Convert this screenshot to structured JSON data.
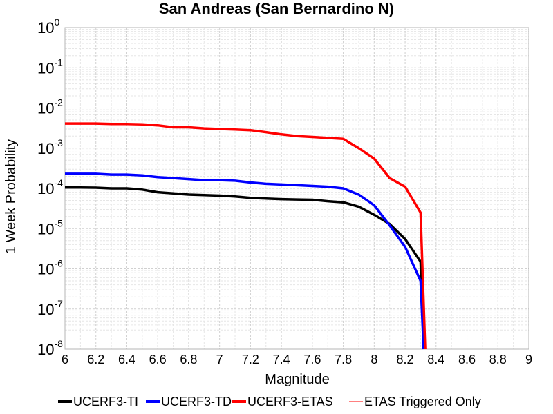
{
  "chart_data": {
    "type": "line",
    "title": "San Andreas (San Bernardino N)",
    "xlabel": "Magnitude",
    "ylabel": "1 Week Probability",
    "xlim": [
      6,
      9
    ],
    "ylim": [
      1e-08,
      1
    ],
    "yscale": "log",
    "grid": true,
    "legend_position": "bottom",
    "x_ticks": [
      "6",
      "6.2",
      "6.4",
      "6.6",
      "6.8",
      "7",
      "7.2",
      "7.4",
      "7.6",
      "7.8",
      "8",
      "8.2",
      "8.4",
      "8.6",
      "8.8",
      "9"
    ],
    "y_ticks": [
      {
        "base": "10",
        "exp": "0"
      },
      {
        "base": "10",
        "exp": "-1"
      },
      {
        "base": "10",
        "exp": "-2"
      },
      {
        "base": "10",
        "exp": "-3"
      },
      {
        "base": "10",
        "exp": "-4"
      },
      {
        "base": "10",
        "exp": "-5"
      },
      {
        "base": "10",
        "exp": "-6"
      },
      {
        "base": "10",
        "exp": "-7"
      },
      {
        "base": "10",
        "exp": "-8"
      }
    ],
    "series": [
      {
        "name": "UCERF3-TI",
        "color": "#000000",
        "x": [
          6.0,
          6.1,
          6.2,
          6.3,
          6.4,
          6.5,
          6.6,
          6.7,
          6.8,
          6.9,
          7.0,
          7.1,
          7.2,
          7.3,
          7.4,
          7.5,
          7.6,
          7.7,
          7.8,
          7.9,
          8.0,
          8.1,
          8.2,
          8.3,
          8.32
        ],
        "y": [
          0.000105,
          0.000105,
          0.000104,
          0.0001,
          0.0001,
          9.3e-05,
          8e-05,
          7.5e-05,
          7e-05,
          6.8e-05,
          6.6e-05,
          6.3e-05,
          5.8e-05,
          5.6e-05,
          5.4e-05,
          5.3e-05,
          5.2e-05,
          4.8e-05,
          4.5e-05,
          3.5e-05,
          2.2e-05,
          1.3e-05,
          5.5e-06,
          1.5e-06,
          1e-08
        ]
      },
      {
        "name": "UCERF3-TD",
        "color": "#0000ff",
        "x": [
          6.0,
          6.1,
          6.2,
          6.3,
          6.4,
          6.5,
          6.6,
          6.7,
          6.8,
          6.9,
          7.0,
          7.1,
          7.2,
          7.3,
          7.4,
          7.5,
          7.6,
          7.7,
          7.8,
          7.9,
          8.0,
          8.1,
          8.2,
          8.3,
          8.32
        ],
        "y": [
          0.00023,
          0.00023,
          0.00023,
          0.00022,
          0.00022,
          0.00021,
          0.00019,
          0.00018,
          0.00017,
          0.00016,
          0.00016,
          0.000155,
          0.00014,
          0.00013,
          0.000125,
          0.00012,
          0.000115,
          0.00011,
          0.0001,
          7e-05,
          3.8e-05,
          1.2e-05,
          3.5e-06,
          5e-07,
          1e-08
        ]
      },
      {
        "name": "UCERF3-ETAS",
        "color": "#ff0000",
        "x": [
          6.0,
          6.1,
          6.2,
          6.3,
          6.4,
          6.5,
          6.6,
          6.7,
          6.8,
          6.9,
          7.0,
          7.1,
          7.2,
          7.3,
          7.4,
          7.5,
          7.6,
          7.7,
          7.8,
          7.9,
          8.0,
          8.1,
          8.2,
          8.3,
          8.33
        ],
        "y": [
          0.0041,
          0.0041,
          0.0041,
          0.004,
          0.004,
          0.0039,
          0.0037,
          0.0033,
          0.0033,
          0.0031,
          0.003,
          0.0029,
          0.0028,
          0.0025,
          0.0022,
          0.002,
          0.0019,
          0.0018,
          0.0017,
          0.001,
          0.00055,
          0.00018,
          0.00011,
          2.5e-05,
          1e-08
        ]
      },
      {
        "name": "ETAS Triggered Only",
        "color": "#ff8080",
        "x": [],
        "y": []
      }
    ]
  }
}
